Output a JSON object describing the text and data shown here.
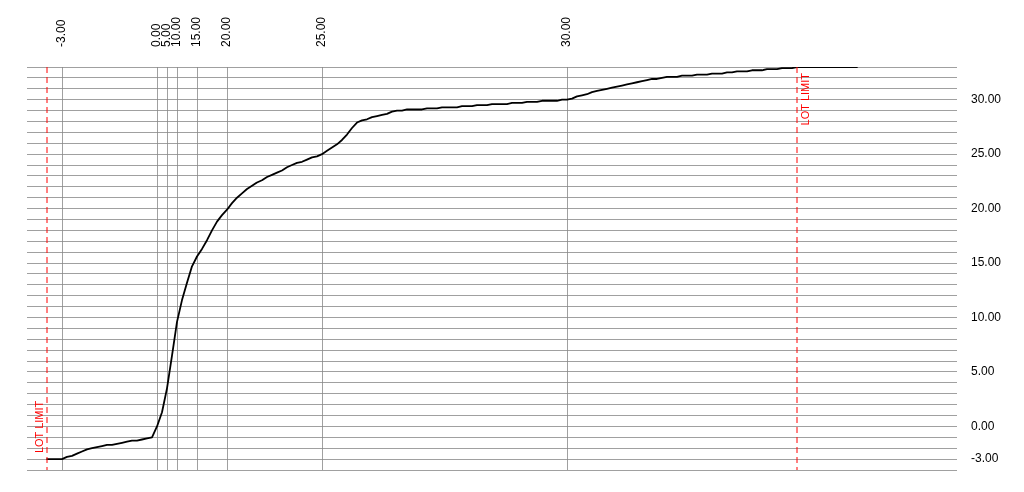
{
  "chart_data": {
    "type": "line",
    "categories": [
      null,
      null,
      null,
      null,
      null,
      null,
      null,
      "-3.00",
      null,
      null,
      null,
      null,
      null,
      null,
      null,
      null,
      null,
      null,
      null,
      null,
      null,
      null,
      null,
      null,
      null,
      null,
      "0.00",
      null,
      "5.00",
      null,
      "10.00",
      null,
      null,
      null,
      "15.00",
      null,
      null,
      null,
      null,
      null,
      "20.00",
      null,
      null,
      null,
      null,
      null,
      null,
      null,
      null,
      null,
      null,
      null,
      null,
      null,
      null,
      null,
      null,
      null,
      null,
      "25.00",
      null,
      null,
      null,
      null,
      null,
      null,
      null,
      null,
      null,
      null,
      null,
      null,
      null,
      null,
      null,
      null,
      null,
      null,
      null,
      null,
      null,
      null,
      null,
      null,
      null,
      null,
      null,
      null,
      null,
      null,
      null,
      null,
      null,
      null,
      null,
      null,
      null,
      null,
      null,
      null,
      null,
      null,
      null,
      null,
      null,
      null,
      null,
      null,
      "30.00",
      null,
      null,
      null,
      null,
      null,
      null,
      null,
      null,
      null,
      null,
      null,
      null,
      null,
      null,
      null,
      null,
      null,
      null,
      null,
      null,
      null,
      null,
      null,
      null,
      null,
      null,
      null,
      null,
      null,
      null,
      null,
      null,
      null,
      null,
      null,
      null,
      null,
      null,
      null,
      null,
      null,
      null,
      null,
      null,
      null,
      null,
      null,
      null,
      null,
      null,
      null,
      null,
      null,
      null,
      null,
      null,
      null,
      null,
      null,
      null,
      null,
      null,
      null,
      null,
      null,
      null,
      null,
      null,
      null,
      null,
      null,
      null,
      null,
      null,
      null,
      null,
      null,
      null
    ],
    "series": [
      {
        "color": "#000000",
        "values": [
          null,
          null,
          null,
          null,
          -3,
          -3,
          -3,
          -3,
          -2.8,
          -2.7,
          -2.5,
          -2.3,
          -2.1,
          -2,
          -1.9,
          -1.8,
          -1.7,
          -1.7,
          -1.6,
          -1.5,
          -1.4,
          -1.3,
          -1.3,
          -1.2,
          -1.1,
          -1,
          0,
          1.3,
          3.5,
          6.5,
          9.6,
          11.6,
          13.2,
          14.7,
          15.6,
          16.3,
          17.1,
          18,
          18.8,
          19.4,
          19.9,
          20.5,
          21,
          21.4,
          21.8,
          22.1,
          22.4,
          22.6,
          22.9,
          23.1,
          23.3,
          23.5,
          23.8,
          24,
          24.2,
          24.3,
          24.5,
          24.7,
          24.8,
          25,
          25.3,
          25.6,
          25.9,
          26.3,
          26.8,
          27.4,
          27.9,
          28.1,
          28.2,
          28.4,
          28.5,
          28.6,
          28.7,
          28.9,
          29,
          29,
          29.1,
          29.1,
          29.1,
          29.1,
          29.2,
          29.2,
          29.2,
          29.3,
          29.3,
          29.3,
          29.3,
          29.4,
          29.4,
          29.4,
          29.5,
          29.5,
          29.5,
          29.6,
          29.6,
          29.6,
          29.6,
          29.7,
          29.7,
          29.7,
          29.8,
          29.8,
          29.8,
          29.9,
          29.9,
          29.9,
          29.9,
          30,
          30,
          30.1,
          30.3,
          30.4,
          30.5,
          30.7,
          30.8,
          30.9,
          31,
          31.1,
          31.2,
          31.3,
          31.4,
          31.5,
          31.6,
          31.7,
          31.8,
          31.9,
          31.9,
          32,
          32.1,
          32.1,
          32.1,
          32.2,
          32.2,
          32.2,
          32.3,
          32.3,
          32.3,
          32.4,
          32.4,
          32.4,
          32.5,
          32.5,
          32.6,
          32.6,
          32.6,
          32.7,
          32.7,
          32.7,
          32.8,
          32.8,
          32.8,
          32.9,
          32.9,
          32.9,
          33,
          33,
          33,
          33,
          33,
          33,
          33,
          33,
          33,
          33,
          33,
          33,
          33,
          null,
          null,
          null,
          null,
          null,
          null,
          null,
          null,
          null,
          null,
          null,
          null,
          null,
          null,
          null,
          null,
          null,
          null,
          null,
          null
        ]
      }
    ],
    "ylim": [
      -4,
      33
    ],
    "yticks": [
      {
        "value": -4,
        "label": null
      },
      {
        "value": -3,
        "label": "-3.00"
      },
      {
        "value": -2,
        "label": null
      },
      {
        "value": -1,
        "label": null
      },
      {
        "value": 0,
        "label": "0.00"
      },
      {
        "value": 1,
        "label": null
      },
      {
        "value": 2,
        "label": null
      },
      {
        "value": 3,
        "label": null
      },
      {
        "value": 4,
        "label": null
      },
      {
        "value": 5,
        "label": "5.00"
      },
      {
        "value": 6,
        "label": null
      },
      {
        "value": 7,
        "label": null
      },
      {
        "value": 8,
        "label": null
      },
      {
        "value": 9,
        "label": null
      },
      {
        "value": 10,
        "label": "10.00"
      },
      {
        "value": 11,
        "label": null
      },
      {
        "value": 12,
        "label": null
      },
      {
        "value": 13,
        "label": null
      },
      {
        "value": 14,
        "label": null
      },
      {
        "value": 15,
        "label": "15.00"
      },
      {
        "value": 16,
        "label": null
      },
      {
        "value": 17,
        "label": null
      },
      {
        "value": 18,
        "label": null
      },
      {
        "value": 19,
        "label": null
      },
      {
        "value": 20,
        "label": "20.00"
      },
      {
        "value": 21,
        "label": null
      },
      {
        "value": 22,
        "label": null
      },
      {
        "value": 23,
        "label": null
      },
      {
        "value": 24,
        "label": null
      },
      {
        "value": 25,
        "label": "25.00"
      },
      {
        "value": 26,
        "label": null
      },
      {
        "value": 27,
        "label": null
      },
      {
        "value": 28,
        "label": null
      },
      {
        "value": 29,
        "label": null
      },
      {
        "value": 30,
        "label": "30.00"
      },
      {
        "value": 31,
        "label": null
      },
      {
        "value": 32,
        "label": null
      },
      {
        "value": 33,
        "label": null
      }
    ],
    "annotations": [
      "LOT LIMIT",
      "LOT LIMIT"
    ],
    "grid": true,
    "legend": false,
    "marker": "none",
    "line_style": "solid"
  }
}
